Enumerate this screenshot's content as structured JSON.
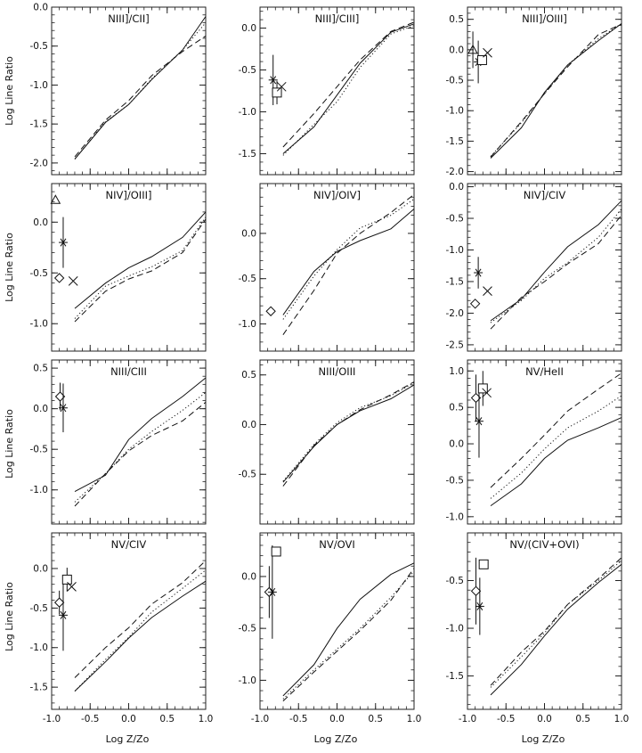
{
  "figure": {
    "y_axis_label": "Log Line Ratio",
    "x_axis_label": "Log Z/Zo"
  },
  "chart_data": [
    {
      "type": "line",
      "title": "NIII]/CII]",
      "xlim": [
        -1.0,
        1.0
      ],
      "ylim": [
        -2.15,
        0.0
      ],
      "xticks": [
        -1.0,
        -0.5,
        0.0,
        0.5,
        1.0
      ],
      "yticks": [
        -2.0,
        -1.5,
        -1.0,
        -0.5,
        0.0
      ],
      "xticklabels": [
        "",
        "",
        "",
        "",
        ""
      ],
      "yticklabels": [
        "-2.0",
        "-1.5",
        "-1.0",
        "-0.5",
        "0.0"
      ],
      "x": [
        -0.7,
        -0.3,
        0.0,
        0.3,
        0.7,
        1.0
      ],
      "series": [
        {
          "style": "solid",
          "values": [
            -1.95,
            -1.48,
            -1.25,
            -0.93,
            -0.55,
            -0.12
          ]
        },
        {
          "style": "dotted",
          "values": [
            -1.95,
            -1.47,
            -1.25,
            -0.92,
            -0.55,
            -0.2
          ]
        },
        {
          "style": "dashed",
          "values": [
            -1.92,
            -1.45,
            -1.2,
            -0.88,
            -0.57,
            -0.37
          ]
        }
      ],
      "observations": []
    },
    {
      "type": "line",
      "title": "NIII]/CIII]",
      "xlim": [
        -1.0,
        1.0
      ],
      "ylim": [
        -1.75,
        0.25
      ],
      "xticks": [
        -1.0,
        -0.5,
        0.0,
        0.5,
        1.0
      ],
      "yticks": [
        -1.5,
        -1.0,
        -0.5,
        0.0
      ],
      "xticklabels": [
        "",
        "",
        "",
        "",
        ""
      ],
      "yticklabels": [
        "-1.5",
        "-1.0",
        "-0.5",
        "0.0"
      ],
      "x": [
        -0.7,
        -0.3,
        0.0,
        0.3,
        0.7,
        1.0
      ],
      "series": [
        {
          "style": "solid",
          "values": [
            -1.5,
            -1.18,
            -0.8,
            -0.42,
            -0.05,
            0.05
          ]
        },
        {
          "style": "dotted",
          "values": [
            -1.52,
            -1.15,
            -0.88,
            -0.47,
            -0.07,
            0.03
          ]
        },
        {
          "style": "dashed",
          "values": [
            -1.42,
            -1.02,
            -0.7,
            -0.38,
            -0.04,
            0.07
          ]
        }
      ],
      "observations": [
        {
          "marker": "asterisk",
          "x": -0.83,
          "y": -0.62,
          "err": 0.3
        },
        {
          "marker": "square",
          "x": -0.78,
          "y": -0.77,
          "err": 0.14
        },
        {
          "marker": "cross",
          "x": -0.72,
          "y": -0.7,
          "err": 0
        }
      ]
    },
    {
      "type": "line",
      "title": "NIII]/OIII]",
      "xlim": [
        -1.0,
        1.0
      ],
      "ylim": [
        -2.05,
        0.7
      ],
      "xticks": [
        -1.0,
        -0.5,
        0.0,
        0.5,
        1.0
      ],
      "yticks": [
        -2.0,
        -1.5,
        -1.0,
        -0.5,
        0.0,
        0.5
      ],
      "xticklabels": [
        "",
        "",
        "",
        "",
        ""
      ],
      "yticklabels": [
        "-2.0",
        "-1.5",
        "-1.0",
        "-0.5",
        "0.0",
        "0.5"
      ],
      "x": [
        -0.7,
        -0.3,
        0.0,
        0.3,
        0.7,
        1.0
      ],
      "series": [
        {
          "style": "solid",
          "values": [
            -1.78,
            -1.28,
            -0.7,
            -0.25,
            0.15,
            0.43
          ]
        },
        {
          "style": "dotted",
          "values": [
            -1.75,
            -1.2,
            -0.72,
            -0.25,
            0.18,
            0.43
          ]
        },
        {
          "style": "dashed",
          "values": [
            -1.76,
            -1.18,
            -0.72,
            -0.28,
            0.25,
            0.42
          ]
        }
      ],
      "observations": [
        {
          "marker": "triangle",
          "x": -0.93,
          "y": 0.0,
          "err": 0.3
        },
        {
          "marker": "asterisk",
          "x": -0.86,
          "y": -0.2,
          "err": 0.35
        },
        {
          "marker": "square",
          "x": -0.81,
          "y": -0.17,
          "err": 0
        },
        {
          "marker": "cross",
          "x": -0.74,
          "y": -0.05,
          "err": 0
        }
      ]
    },
    {
      "type": "line",
      "title": "NIV]/OIII]",
      "xlim": [
        -1.0,
        1.0
      ],
      "ylim": [
        -1.27,
        0.38
      ],
      "xticks": [
        -1.0,
        -0.5,
        0.0,
        0.5,
        1.0
      ],
      "yticks": [
        -1.0,
        -0.5,
        0.0
      ],
      "xticklabels": [
        "",
        "",
        "",
        "",
        ""
      ],
      "yticklabels": [
        "-1.0",
        "-0.5",
        "0.0"
      ],
      "x": [
        -0.7,
        -0.3,
        0.0,
        0.3,
        0.7,
        1.0
      ],
      "series": [
        {
          "style": "solid",
          "values": [
            -0.85,
            -0.6,
            -0.45,
            -0.34,
            -0.15,
            0.1
          ]
        },
        {
          "style": "dotted",
          "values": [
            -0.95,
            -0.63,
            -0.53,
            -0.44,
            -0.28,
            0.05
          ]
        },
        {
          "style": "dashed",
          "values": [
            -0.98,
            -0.68,
            -0.56,
            -0.48,
            -0.3,
            0.03
          ]
        }
      ],
      "observations": [
        {
          "marker": "triangle",
          "x": -0.95,
          "y": 0.22,
          "err": 0
        },
        {
          "marker": "asterisk",
          "x": -0.85,
          "y": -0.2,
          "err": 0.25
        },
        {
          "marker": "diamond",
          "x": -0.9,
          "y": -0.55,
          "err": 0
        },
        {
          "marker": "cross",
          "x": -0.72,
          "y": -0.58,
          "err": 0
        }
      ]
    },
    {
      "type": "line",
      "title": "NIV]/OIV]",
      "xlim": [
        -1.0,
        1.0
      ],
      "ylim": [
        -1.3,
        0.55
      ],
      "xticks": [
        -1.0,
        -0.5,
        0.0,
        0.5,
        1.0
      ],
      "yticks": [
        -1.0,
        -0.5,
        0.0
      ],
      "xticklabels": [
        "",
        "",
        "",
        "",
        ""
      ],
      "yticklabels": [
        "-1.0",
        "-0.5",
        "0.0"
      ],
      "x": [
        -0.7,
        -0.3,
        0.0,
        0.3,
        0.7,
        1.0
      ],
      "series": [
        {
          "style": "solid",
          "values": [
            -0.9,
            -0.42,
            -0.2,
            -0.08,
            0.05,
            0.27
          ]
        },
        {
          "style": "dotted",
          "values": [
            -0.95,
            -0.47,
            -0.18,
            0.06,
            0.2,
            0.38
          ]
        },
        {
          "style": "dashed",
          "values": [
            -1.12,
            -0.63,
            -0.22,
            0.0,
            0.23,
            0.43
          ]
        }
      ],
      "observations": [
        {
          "marker": "diamond",
          "x": -0.86,
          "y": -0.86,
          "err": 0
        }
      ]
    },
    {
      "type": "line",
      "title": "NIV]/CIV",
      "xlim": [
        -1.0,
        1.0
      ],
      "ylim": [
        -2.6,
        0.05
      ],
      "xticks": [
        -1.0,
        -0.5,
        0.0,
        0.5,
        1.0
      ],
      "yticks": [
        -2.5,
        -2.0,
        -1.5,
        -1.0,
        -0.5,
        0.0
      ],
      "xticklabels": [
        "",
        "",
        "",
        "",
        ""
      ],
      "yticklabels": [
        "-2.5",
        "-2.0",
        "-1.5",
        "-1.0",
        "-0.5",
        "0.0"
      ],
      "x": [
        -0.7,
        -0.3,
        0.0,
        0.3,
        0.7,
        1.0
      ],
      "series": [
        {
          "style": "solid",
          "values": [
            -2.12,
            -1.78,
            -1.35,
            -0.95,
            -0.6,
            -0.22
          ]
        },
        {
          "style": "dotted",
          "values": [
            -2.15,
            -1.8,
            -1.45,
            -1.2,
            -0.8,
            -0.35
          ]
        },
        {
          "style": "dashed",
          "values": [
            -2.25,
            -1.75,
            -1.5,
            -1.22,
            -0.9,
            -0.45
          ]
        }
      ],
      "observations": [
        {
          "marker": "asterisk",
          "x": -0.86,
          "y": -1.36,
          "err": 0.25
        },
        {
          "marker": "diamond",
          "x": -0.9,
          "y": -1.85,
          "err": 0
        },
        {
          "marker": "cross",
          "x": -0.74,
          "y": -1.65,
          "err": 0
        }
      ]
    },
    {
      "type": "line",
      "title": "NIII/CIII",
      "xlim": [
        -1.0,
        1.0
      ],
      "ylim": [
        -1.42,
        0.6
      ],
      "xticks": [
        -1.0,
        -0.5,
        0.0,
        0.5,
        1.0
      ],
      "yticks": [
        -1.0,
        -0.5,
        0.0,
        0.5
      ],
      "xticklabels": [
        "",
        "",
        "",
        "",
        ""
      ],
      "yticklabels": [
        "-1.0",
        "-0.5",
        "0.0",
        "0.5"
      ],
      "x": [
        -0.7,
        -0.3,
        0.0,
        0.3,
        0.7,
        1.0
      ],
      "series": [
        {
          "style": "solid",
          "values": [
            -1.02,
            -0.82,
            -0.38,
            -0.12,
            0.15,
            0.38
          ]
        },
        {
          "style": "dotted",
          "values": [
            -1.15,
            -0.8,
            -0.5,
            -0.28,
            -0.02,
            0.2
          ]
        },
        {
          "style": "dashed",
          "values": [
            -1.2,
            -0.8,
            -0.52,
            -0.33,
            -0.15,
            0.08
          ]
        }
      ],
      "observations": [
        {
          "marker": "diamond",
          "x": -0.89,
          "y": 0.15,
          "err": 0.17
        },
        {
          "marker": "asterisk",
          "x": -0.85,
          "y": 0.01,
          "err": 0.3
        }
      ]
    },
    {
      "type": "line",
      "title": "NIII/OIII",
      "xlim": [
        -1.0,
        1.0
      ],
      "ylim": [
        -1.0,
        0.65
      ],
      "xticks": [
        -1.0,
        -0.5,
        0.0,
        0.5,
        1.0
      ],
      "yticks": [
        -0.5,
        0.0,
        0.5
      ],
      "xticklabels": [
        "",
        "",
        "",
        "",
        ""
      ],
      "yticklabels": [
        "-0.5",
        "0.0",
        "0.5"
      ],
      "x": [
        -0.7,
        -0.3,
        0.0,
        0.3,
        0.7,
        1.0
      ],
      "series": [
        {
          "style": "solid",
          "values": [
            -0.58,
            -0.22,
            0.0,
            0.14,
            0.26,
            0.4
          ]
        },
        {
          "style": "dotted",
          "values": [
            -0.57,
            -0.2,
            0.02,
            0.17,
            0.29,
            0.42
          ]
        },
        {
          "style": "dashed",
          "values": [
            -0.62,
            -0.21,
            0.0,
            0.15,
            0.3,
            0.43
          ]
        }
      ],
      "observations": []
    },
    {
      "type": "line",
      "title": "NV/HeII",
      "xlim": [
        -1.0,
        1.0
      ],
      "ylim": [
        -1.1,
        1.15
      ],
      "xticks": [
        -1.0,
        -0.5,
        0.0,
        0.5,
        1.0
      ],
      "yticks": [
        -1.0,
        -0.5,
        0.0,
        0.5,
        1.0
      ],
      "xticklabels": [
        "",
        "",
        "",
        "",
        ""
      ],
      "yticklabels": [
        "-1.0",
        "-0.5",
        "0.0",
        "0.5",
        "1.0"
      ],
      "x": [
        -0.7,
        -0.3,
        0.0,
        0.3,
        0.7,
        1.0
      ],
      "series": [
        {
          "style": "solid",
          "values": [
            -0.85,
            -0.55,
            -0.2,
            0.05,
            0.22,
            0.36
          ]
        },
        {
          "style": "dotted",
          "values": [
            -0.75,
            -0.4,
            -0.07,
            0.22,
            0.45,
            0.66
          ]
        },
        {
          "style": "dashed",
          "values": [
            -0.6,
            -0.2,
            0.12,
            0.45,
            0.75,
            0.97
          ]
        }
      ],
      "observations": [
        {
          "marker": "diamond",
          "x": -0.89,
          "y": 0.63,
          "err": 0.32
        },
        {
          "marker": "asterisk",
          "x": -0.85,
          "y": 0.31,
          "err": 0.5
        },
        {
          "marker": "square",
          "x": -0.8,
          "y": 0.76,
          "err": 0.24
        },
        {
          "marker": "cross",
          "x": -0.75,
          "y": 0.7,
          "err": 0
        }
      ]
    },
    {
      "type": "line",
      "title": "NV/CIV",
      "xlim": [
        -1.0,
        1.0
      ],
      "ylim": [
        -1.78,
        0.45
      ],
      "xticks": [
        -1.0,
        -0.5,
        0.0,
        0.5,
        1.0
      ],
      "yticks": [
        -1.5,
        -1.0,
        -0.5,
        0.0
      ],
      "xticklabels": [
        "-1.0",
        "-0.5",
        "0.0",
        "0.5",
        "1.0"
      ],
      "yticklabels": [
        "-1.5",
        "-1.0",
        "-0.5",
        "0.0"
      ],
      "x": [
        -0.7,
        -0.3,
        0.0,
        0.3,
        0.7,
        1.0
      ],
      "series": [
        {
          "style": "solid",
          "values": [
            -1.55,
            -1.18,
            -0.88,
            -0.62,
            -0.35,
            -0.16
          ]
        },
        {
          "style": "dotted",
          "values": [
            -1.55,
            -1.15,
            -0.87,
            -0.55,
            -0.25,
            -0.02
          ]
        },
        {
          "style": "dashed",
          "values": [
            -1.38,
            -1.0,
            -0.75,
            -0.45,
            -0.18,
            0.1
          ]
        }
      ],
      "observations": [
        {
          "marker": "diamond",
          "x": -0.9,
          "y": -0.43,
          "err": 0.15
        },
        {
          "marker": "asterisk",
          "x": -0.85,
          "y": -0.59,
          "err": 0.45
        },
        {
          "marker": "square",
          "x": -0.8,
          "y": -0.14,
          "err": 0.15
        },
        {
          "marker": "cross",
          "x": -0.74,
          "y": -0.23,
          "err": 0
        }
      ]
    },
    {
      "type": "line",
      "title": "NV/OVI",
      "xlim": [
        -1.0,
        1.0
      ],
      "ylim": [
        -1.28,
        0.42
      ],
      "xticks": [
        -1.0,
        -0.5,
        0.0,
        0.5,
        1.0
      ],
      "yticks": [
        -1.0,
        -0.5,
        0.0
      ],
      "xticklabels": [
        "-1.0",
        "-0.5",
        "0.0",
        "0.5",
        "1.0"
      ],
      "yticklabels": [
        "-1.0",
        "-0.5",
        "0.0"
      ],
      "x": [
        -0.7,
        -0.3,
        0.0,
        0.3,
        0.7,
        1.0
      ],
      "series": [
        {
          "style": "solid",
          "values": [
            -1.15,
            -0.85,
            -0.5,
            -0.22,
            0.02,
            0.13
          ]
        },
        {
          "style": "dotted",
          "values": [
            -1.18,
            -0.9,
            -0.7,
            -0.5,
            -0.2,
            0.05
          ]
        },
        {
          "style": "dashed",
          "values": [
            -1.2,
            -0.92,
            -0.72,
            -0.52,
            -0.23,
            0.08
          ]
        }
      ],
      "observations": [
        {
          "marker": "diamond",
          "x": -0.88,
          "y": -0.15,
          "err": 0.25
        },
        {
          "marker": "asterisk",
          "x": -0.84,
          "y": -0.15,
          "err": 0.45
        },
        {
          "marker": "square",
          "x": -0.79,
          "y": 0.24,
          "err": 0
        }
      ]
    },
    {
      "type": "line",
      "title": "NV/(CIV+OVI)",
      "xlim": [
        -1.0,
        1.0
      ],
      "ylim": [
        -1.85,
        0.0
      ],
      "xticks": [
        -1.0,
        -0.5,
        0.0,
        0.5,
        1.0
      ],
      "yticks": [
        -1.5,
        -1.0,
        -0.5
      ],
      "xticklabels": [
        "-1.0",
        "-0.5",
        "0.0",
        "0.5",
        "1.0"
      ],
      "yticklabels": [
        "-1.5",
        "-1.0",
        "-0.5"
      ],
      "x": [
        -0.7,
        -0.3,
        0.0,
        0.3,
        0.7,
        1.0
      ],
      "series": [
        {
          "style": "solid",
          "values": [
            -1.7,
            -1.38,
            -1.08,
            -0.8,
            -0.52,
            -0.33
          ]
        },
        {
          "style": "dotted",
          "values": [
            -1.62,
            -1.3,
            -1.05,
            -0.75,
            -0.5,
            -0.29
          ]
        },
        {
          "style": "dashed",
          "values": [
            -1.6,
            -1.25,
            -1.03,
            -0.75,
            -0.48,
            -0.26
          ]
        }
      ],
      "observations": [
        {
          "marker": "diamond",
          "x": -0.89,
          "y": -0.61,
          "err": 0.35
        },
        {
          "marker": "asterisk",
          "x": -0.84,
          "y": -0.77,
          "err": 0.3
        },
        {
          "marker": "square",
          "x": -0.79,
          "y": -0.33,
          "err": 0
        }
      ]
    }
  ]
}
